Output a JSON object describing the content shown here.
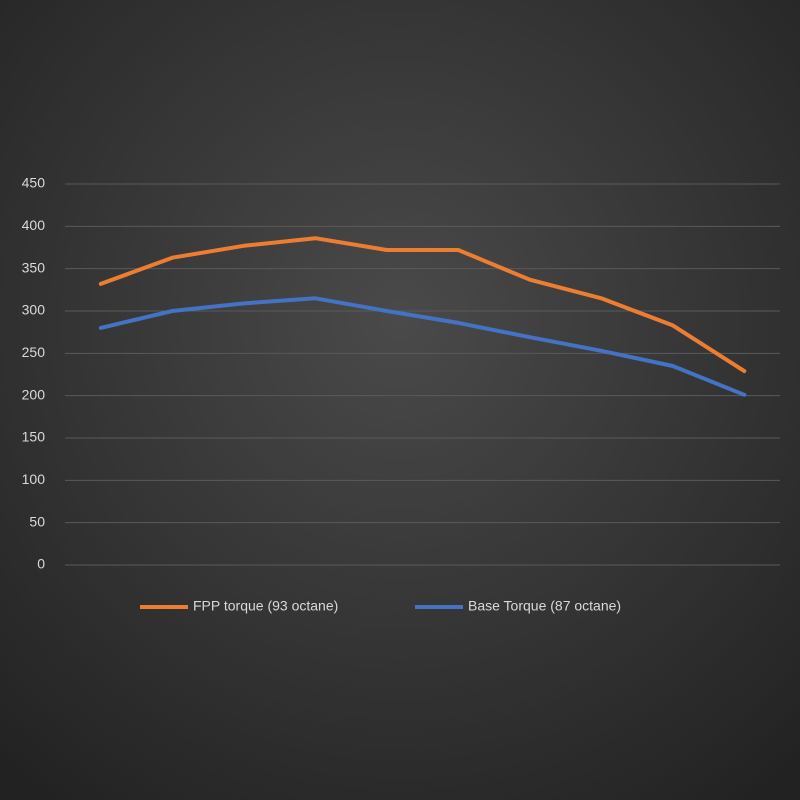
{
  "chart_data": {
    "type": "line",
    "categories": [
      null,
      null,
      null,
      null,
      null,
      null,
      null,
      null,
      null,
      null
    ],
    "series": [
      {
        "name": "FPP torque (93 octane)",
        "color": "#ed7d31",
        "values": [
          332,
          363,
          377,
          386,
          372,
          372,
          337,
          315,
          283,
          229
        ]
      },
      {
        "name": "Base Torque (87 octane)",
        "color": "#4472c4",
        "values": [
          280,
          300,
          309,
          315,
          300,
          286,
          269,
          253,
          235,
          201
        ]
      }
    ],
    "ylim": [
      0,
      450
    ],
    "yticks": [
      0,
      50,
      100,
      150,
      200,
      250,
      300,
      350,
      400,
      450
    ],
    "grid": true,
    "legend": "bottom"
  }
}
